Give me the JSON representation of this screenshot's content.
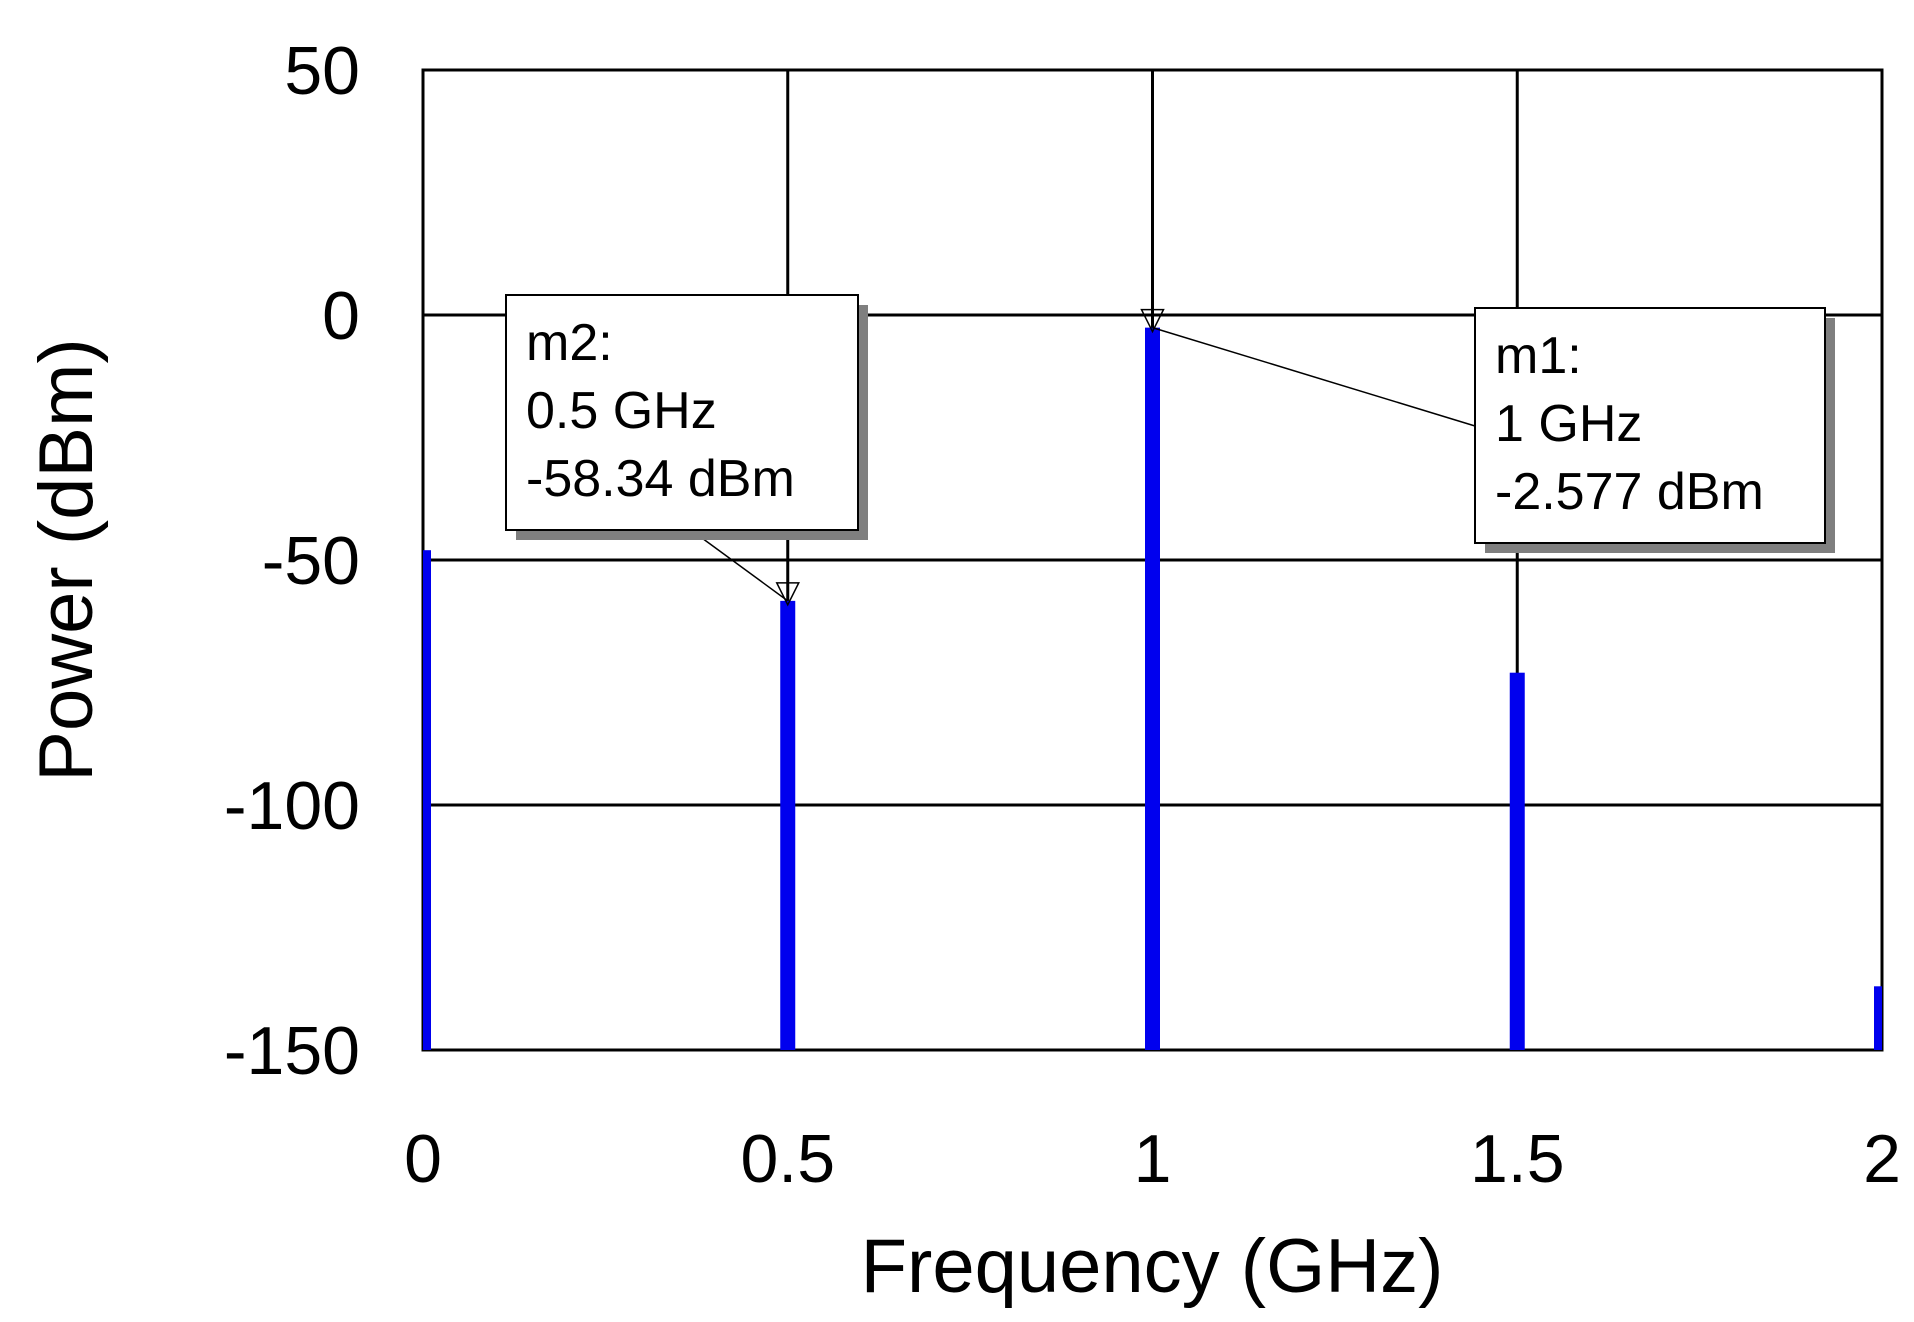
{
  "chart_data": {
    "type": "bar",
    "title": "",
    "xlabel": "Frequency (GHz)",
    "ylabel": "Power (dBm)",
    "xlim": [
      0,
      2
    ],
    "ylim": [
      -150,
      50
    ],
    "xticks": [
      "0",
      "0.5",
      "1",
      "1.5",
      "2"
    ],
    "yticks": [
      "50",
      "0",
      "-50",
      "-100",
      "-150"
    ],
    "grid": true,
    "series": [
      {
        "x": [
          0,
          0.5,
          1,
          1.5,
          2
        ],
        "values": [
          -48,
          -58.34,
          -2.577,
          -73,
          -137
        ],
        "color": "#0000ee"
      }
    ],
    "markers": [
      {
        "id": "m1",
        "x": 1,
        "y": -2.577,
        "lines": [
          "m1:",
          "1 GHz",
          "-2.577 dBm"
        ]
      },
      {
        "id": "m2",
        "x": 0.5,
        "y": -58.34,
        "lines": [
          "m2:",
          "0.5 GHz",
          "-58.34 dBm"
        ]
      }
    ]
  }
}
